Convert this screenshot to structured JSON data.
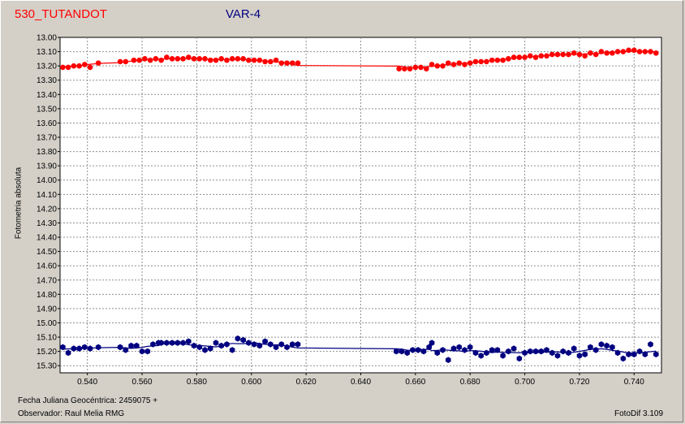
{
  "header": {
    "left_title": "530_TUTANDOT",
    "right_title": "VAR-4"
  },
  "footer": {
    "jd_label": "Fecha Juliana Geocéntrica: 2459075 +",
    "observer": "Observador: Raul Melia RMG",
    "software": "FotoDif 3.109"
  },
  "colors": {
    "comparison": "#ff0000",
    "variable": "#000080",
    "background": "#d4d0c8",
    "plot_bg": "#ffffff",
    "grid": "#909090"
  },
  "chart_data": {
    "type": "scatter",
    "title": "",
    "xlabel": "Fecha Juliana Geocéntrica: 2459075 +",
    "ylabel": "Fotometria absoluta",
    "xlim": [
      0.53,
      0.75
    ],
    "ylim": [
      13.0,
      15.35
    ],
    "y_inverted": true,
    "grid": true,
    "x_ticks": [
      "0.540",
      "0.560",
      "0.580",
      "0.600",
      "0.620",
      "0.640",
      "0.660",
      "0.680",
      "0.700",
      "0.720",
      "0.740"
    ],
    "y_ticks": [
      "13.00",
      "13.10",
      "13.20",
      "13.30",
      "13.40",
      "13.50",
      "13.60",
      "13.70",
      "13.80",
      "13.90",
      "14.00",
      "14.10",
      "14.20",
      "14.30",
      "14.40",
      "14.50",
      "14.60",
      "14.70",
      "14.80",
      "14.90",
      "15.00",
      "15.10",
      "15.20",
      "15.30"
    ],
    "series": [
      {
        "name": "530_TUTANDOT",
        "color": "#ff0000",
        "marker": "circle",
        "x": [
          0.531,
          0.533,
          0.535,
          0.537,
          0.539,
          0.541,
          0.544,
          0.552,
          0.554,
          0.557,
          0.559,
          0.561,
          0.563,
          0.565,
          0.567,
          0.569,
          0.571,
          0.573,
          0.575,
          0.577,
          0.579,
          0.581,
          0.583,
          0.585,
          0.587,
          0.589,
          0.591,
          0.593,
          0.595,
          0.597,
          0.599,
          0.601,
          0.603,
          0.605,
          0.607,
          0.609,
          0.611,
          0.613,
          0.615,
          0.617,
          0.654,
          0.656,
          0.658,
          0.66,
          0.662,
          0.664,
          0.666,
          0.668,
          0.67,
          0.672,
          0.674,
          0.676,
          0.678,
          0.68,
          0.682,
          0.684,
          0.686,
          0.688,
          0.69,
          0.692,
          0.694,
          0.696,
          0.698,
          0.7,
          0.702,
          0.704,
          0.706,
          0.708,
          0.71,
          0.712,
          0.714,
          0.716,
          0.718,
          0.72,
          0.722,
          0.724,
          0.726,
          0.728,
          0.73,
          0.732,
          0.734,
          0.736,
          0.738,
          0.74,
          0.742,
          0.744,
          0.746,
          0.748
        ],
        "y": [
          13.21,
          13.21,
          13.2,
          13.2,
          13.19,
          13.21,
          13.18,
          13.17,
          13.17,
          13.16,
          13.16,
          13.15,
          13.16,
          13.15,
          13.16,
          13.14,
          13.15,
          13.15,
          13.15,
          13.14,
          13.15,
          13.15,
          13.15,
          13.16,
          13.16,
          13.15,
          13.16,
          13.15,
          13.15,
          13.15,
          13.16,
          13.16,
          13.16,
          13.17,
          13.17,
          13.16,
          13.18,
          13.18,
          13.18,
          13.18,
          13.22,
          13.22,
          13.22,
          13.21,
          13.21,
          13.22,
          13.19,
          13.2,
          13.2,
          13.18,
          13.19,
          13.18,
          13.19,
          13.18,
          13.17,
          13.17,
          13.17,
          13.16,
          13.16,
          13.16,
          13.15,
          13.14,
          13.14,
          13.14,
          13.13,
          13.14,
          13.13,
          13.13,
          13.12,
          13.12,
          13.12,
          13.12,
          13.11,
          13.12,
          13.13,
          13.11,
          13.12,
          13.1,
          13.11,
          13.11,
          13.1,
          13.1,
          13.09,
          13.09,
          13.1,
          13.1,
          13.1,
          13.11
        ]
      },
      {
        "name": "VAR-4",
        "color": "#000080",
        "marker": "hexagon",
        "x": [
          0.531,
          0.533,
          0.535,
          0.537,
          0.539,
          0.541,
          0.544,
          0.552,
          0.554,
          0.556,
          0.558,
          0.56,
          0.562,
          0.564,
          0.566,
          0.567,
          0.569,
          0.571,
          0.573,
          0.575,
          0.577,
          0.579,
          0.581,
          0.583,
          0.585,
          0.587,
          0.589,
          0.591,
          0.593,
          0.595,
          0.597,
          0.599,
          0.601,
          0.603,
          0.605,
          0.607,
          0.609,
          0.611,
          0.613,
          0.615,
          0.617,
          0.653,
          0.655,
          0.657,
          0.659,
          0.661,
          0.663,
          0.665,
          0.666,
          0.668,
          0.67,
          0.672,
          0.674,
          0.676,
          0.678,
          0.68,
          0.682,
          0.684,
          0.686,
          0.688,
          0.69,
          0.692,
          0.694,
          0.696,
          0.698,
          0.7,
          0.702,
          0.704,
          0.706,
          0.708,
          0.71,
          0.712,
          0.714,
          0.716,
          0.718,
          0.72,
          0.722,
          0.724,
          0.726,
          0.728,
          0.73,
          0.732,
          0.734,
          0.736,
          0.738,
          0.74,
          0.742,
          0.744,
          0.746,
          0.748
        ],
        "y": [
          15.17,
          15.21,
          15.18,
          15.18,
          15.17,
          15.18,
          15.17,
          15.17,
          15.19,
          15.16,
          15.16,
          15.2,
          15.2,
          15.15,
          15.14,
          15.14,
          15.14,
          15.14,
          15.14,
          15.14,
          15.13,
          15.16,
          15.17,
          15.19,
          15.18,
          15.14,
          15.16,
          15.15,
          15.19,
          15.11,
          15.12,
          15.14,
          15.15,
          15.16,
          15.13,
          15.15,
          15.17,
          15.15,
          15.17,
          15.15,
          15.15,
          15.2,
          15.2,
          15.21,
          15.19,
          15.19,
          15.2,
          15.17,
          15.14,
          15.21,
          15.19,
          15.26,
          15.18,
          15.17,
          15.19,
          15.17,
          15.21,
          15.23,
          15.21,
          15.19,
          15.19,
          15.23,
          15.2,
          15.18,
          15.25,
          15.21,
          15.2,
          15.2,
          15.2,
          15.19,
          15.21,
          15.23,
          15.2,
          15.21,
          15.18,
          15.23,
          15.22,
          15.17,
          15.19,
          15.15,
          15.16,
          15.17,
          15.21,
          15.25,
          15.22,
          15.22,
          15.2,
          15.22,
          15.15,
          15.22
        ]
      }
    ]
  }
}
